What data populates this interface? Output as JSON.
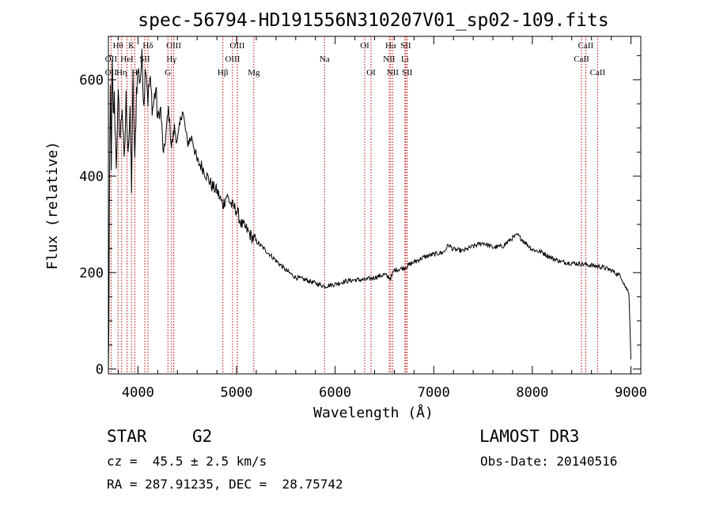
{
  "chart_data": {
    "type": "line",
    "title": "spec-56794-HD191556N310207V01_sp02-109.fits",
    "xlabel": "Wavelength (Å)",
    "ylabel": "Flux (relative)",
    "xlim": [
      3700,
      9100
    ],
    "ylim": [
      -10,
      690
    ],
    "x_ticks": [
      4000,
      5000,
      6000,
      7000,
      8000,
      9000
    ],
    "y_ticks": [
      0,
      200,
      400,
      600
    ],
    "x_tick_labels": [
      "4000",
      "5000",
      "6000",
      "7000",
      "8000",
      "9000"
    ],
    "y_tick_labels": [
      "0",
      "200",
      "400",
      "600"
    ],
    "grid": false,
    "legend": "none",
    "series": [
      {
        "x": [
          3700,
          3705,
          3710,
          3720,
          3730,
          3740,
          3750,
          3760,
          3780,
          3800,
          3820,
          3840,
          3860,
          3880,
          3900,
          3920,
          3935,
          3950,
          3968,
          3985,
          4000,
          4020,
          4040,
          4060,
          4080,
          4101,
          4120,
          4150,
          4180,
          4200,
          4230,
          4260,
          4290,
          4310,
          4340,
          4370,
          4400,
          4450,
          4500,
          4550,
          4600,
          4650,
          4700,
          4750,
          4800,
          4861,
          4900,
          4950,
          5000,
          5050,
          5100,
          5150,
          5200,
          5300,
          5400,
          5500,
          5600,
          5700,
          5800,
          5893,
          6000,
          6100,
          6200,
          6300,
          6400,
          6500,
          6563,
          6600,
          6700,
          6800,
          6900,
          7000,
          7100,
          7150,
          7200,
          7300,
          7400,
          7500,
          7600,
          7700,
          7800,
          7850,
          7900,
          8000,
          8100,
          8200,
          8300,
          8400,
          8500,
          8600,
          8700,
          8800,
          8900,
          8950,
          8980,
          9000
        ],
        "values": [
          0,
          80,
          320,
          580,
          430,
          630,
          520,
          560,
          430,
          560,
          480,
          550,
          420,
          560,
          460,
          520,
          380,
          600,
          420,
          580,
          620,
          600,
          640,
          560,
          640,
          560,
          600,
          540,
          580,
          520,
          540,
          440,
          500,
          540,
          460,
          500,
          470,
          540,
          470,
          480,
          430,
          420,
          400,
          380,
          370,
          340,
          360,
          340,
          330,
          300,
          290,
          275,
          265,
          245,
          225,
          205,
          190,
          185,
          178,
          172,
          176,
          182,
          185,
          185,
          190,
          196,
          188,
          205,
          210,
          222,
          232,
          238,
          242,
          258,
          248,
          245,
          255,
          262,
          252,
          255,
          272,
          278,
          268,
          248,
          242,
          230,
          222,
          220,
          218,
          215,
          212,
          205,
          192,
          168,
          160,
          20
        ]
      }
    ],
    "lines": [
      {
        "label": "OII",
        "x": 3727,
        "row": 2
      },
      {
        "label": "OII",
        "x": 3727,
        "row": 3
      },
      {
        "label": "Hθ",
        "x": 3798,
        "row": 1
      },
      {
        "label": "Hη",
        "x": 3835,
        "row": 3
      },
      {
        "label": "HeI",
        "x": 3889,
        "row": 2
      },
      {
        "label": "K",
        "x": 3934,
        "row": 1
      },
      {
        "label": "H",
        "x": 3968,
        "row": 3
      },
      {
        "label": "Hδ",
        "x": 4101,
        "row": 1
      },
      {
        "label": "SII",
        "x": 4069,
        "row": 2
      },
      {
        "label": "OIII",
        "x": 4363,
        "row": 1
      },
      {
        "label": "Hγ",
        "x": 4340,
        "row": 2
      },
      {
        "label": "G",
        "x": 4304,
        "row": 3
      },
      {
        "label": "Hβ",
        "x": 4861,
        "row": 3
      },
      {
        "label": "OIII",
        "x": 5007,
        "row": 1
      },
      {
        "label": "OIII",
        "x": 4959,
        "row": 2
      },
      {
        "label": "Mg",
        "x": 5175,
        "row": 3
      },
      {
        "label": "Na",
        "x": 5893,
        "row": 2
      },
      {
        "label": "OI",
        "x": 6300,
        "row": 1
      },
      {
        "label": "OI",
        "x": 6364,
        "row": 3
      },
      {
        "label": "Hα",
        "x": 6563,
        "row": 1
      },
      {
        "label": "NII",
        "x": 6548,
        "row": 2
      },
      {
        "label": "NII",
        "x": 6583,
        "row": 3
      },
      {
        "label": "SII",
        "x": 6716,
        "row": 1
      },
      {
        "label": "Li",
        "x": 6708,
        "row": 2
      },
      {
        "label": "SII",
        "x": 6731,
        "row": 3
      },
      {
        "label": "CaII",
        "x": 8542,
        "row": 1
      },
      {
        "label": "CaII",
        "x": 8498,
        "row": 2
      },
      {
        "label": "CaII",
        "x": 8662,
        "row": 3
      }
    ]
  },
  "info": {
    "object_class": "STAR",
    "subclass": "G2",
    "survey": "LAMOST DR3",
    "redshift": "cz =  45.5 ± 2.5 km/s",
    "obs_date": "Obs-Date: 20140516",
    "coords": "RA = 287.91235, DEC =  28.75742"
  }
}
